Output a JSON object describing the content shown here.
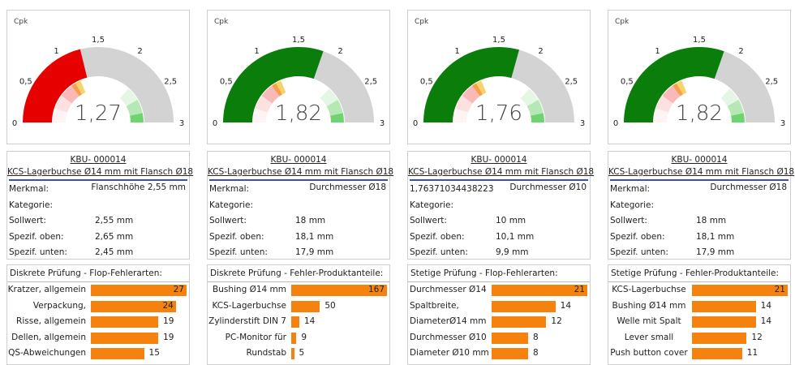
{
  "gauge_scale": {
    "label": "Cpk",
    "range": [
      0,
      3
    ],
    "ticks": [
      0,
      {
        "value": 0.5,
        "label": "0,5"
      },
      1,
      {
        "value": 1.5,
        "label": "1,5"
      },
      2,
      {
        "value": 2.5,
        "label": "2,5"
      },
      3
    ]
  },
  "panels": [
    {
      "gauge": {
        "value": 1.27,
        "value_label": "1,27",
        "color": "#e60000"
      },
      "info": {
        "link": "KBU- 000014",
        "subtitle": "KCS-Lagerbuchse Ø14 mm mit Flansch Ø18",
        "rows": [
          [
            "Merkmal:",
            "Flanschhöhe 2,55 mm"
          ],
          [
            "Kategorie:"
          ],
          [
            "Sollwert:",
            "2,55 mm"
          ],
          [
            "Spezif. oben:",
            "2,65 mm"
          ],
          [
            "Spezif. unten:",
            "2,45 mm"
          ]
        ]
      },
      "bars": {
        "title": "Diskrete Prüfung - Flop-Fehlerarten:",
        "label_align": "right",
        "color": "#f5820f",
        "categories": [
          "Kratzer, allgemein",
          "Verpackung,",
          "Risse, allgemein",
          "Dellen, allgemein",
          "QS-Abweichungen"
        ],
        "values": [
          27,
          24,
          19,
          19,
          15
        ]
      }
    },
    {
      "gauge": {
        "value": 1.82,
        "value_label": "1,82",
        "color": "#0a7d0a"
      },
      "info": {
        "link": "KBU- 000014",
        "subtitle": "KCS-Lagerbuchse Ø14 mm mit Flansch Ø18",
        "rows": [
          [
            "Merkmal:",
            "Durchmesser Ø18"
          ],
          [
            "Kategorie:"
          ],
          [
            "Sollwert:",
            "18 mm"
          ],
          [
            "Spezif. oben:",
            "18,1 mm"
          ],
          [
            "Spezif. unten:",
            "17,9 mm"
          ]
        ]
      },
      "bars": {
        "title": "Diskrete Prüfung - Fehler-Produktanteile:",
        "label_align": "right",
        "color": "#f5820f",
        "categories": [
          "Bushing Ø14 mm",
          "KCS-Lagerbuchse",
          "Zylinderstift DIN 7",
          "PC-Monitor für",
          "Rundstab"
        ],
        "values": [
          167,
          50,
          14,
          9,
          5
        ]
      }
    },
    {
      "gauge": {
        "value": 1.76,
        "value_label": "1,76",
        "color": "#0a7d0a"
      },
      "info": {
        "link": "KBU- 000014",
        "subtitle": "KCS-Lagerbuchse Ø14 mm mit Flansch Ø18",
        "rows": [
          [
            "1,76371034438223",
            "Durchmesser Ø10"
          ],
          [
            "Kategorie:"
          ],
          [
            "Sollwert:",
            "10 mm"
          ],
          [
            "Spezif. oben:",
            "10,1 mm"
          ],
          [
            "Spezif. unten:",
            "9,9 mm"
          ]
        ]
      },
      "bars": {
        "title": "Stetige Prüfung - Flop-Fehlerarten:",
        "label_align": "left",
        "color": "#f5820f",
        "categories": [
          "Durchmesser Ø14",
          "Spaltbreite,",
          "DiameterØ14 mm",
          "Durchmesser Ø10",
          "Diameter Ø10 mm"
        ],
        "values": [
          21,
          14,
          12,
          8,
          8
        ]
      }
    },
    {
      "gauge": {
        "value": 1.82,
        "value_label": "1,82",
        "color": "#0a7d0a"
      },
      "info": {
        "link": "KBU- 000014",
        "subtitle": "KCS-Lagerbuchse Ø14 mm mit Flansch Ø18",
        "rows": [
          [
            "Merkmal:",
            "Durchmesser Ø18"
          ],
          [
            "Kategorie:"
          ],
          [
            "Sollwert:",
            "18 mm"
          ],
          [
            "Spezif. oben:",
            "18,1 mm"
          ],
          [
            "Spezif. unten:",
            "17,9 mm"
          ]
        ]
      },
      "bars": {
        "title": "Stetige Prüfung - Fehler-Produktanteile:",
        "label_align": "center",
        "color": "#f5820f",
        "categories": [
          "KCS-Lagerbuchse",
          "Bushing Ø14 mm",
          "Welle mit Spalt",
          "Lever small",
          "Push button cover"
        ],
        "values": [
          21,
          14,
          14,
          12,
          11
        ]
      }
    }
  ]
}
